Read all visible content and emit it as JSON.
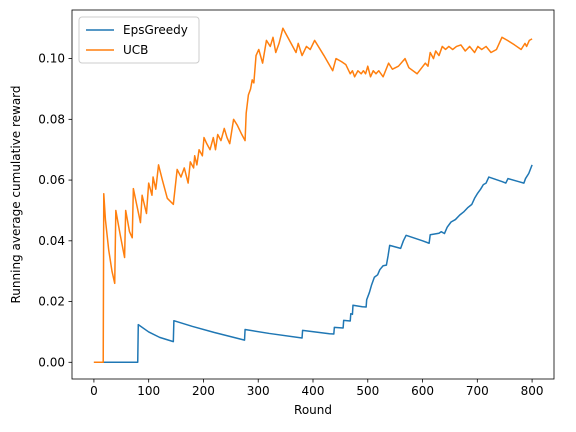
{
  "chart_data": {
    "type": "line",
    "title": "",
    "xlabel": "Round",
    "ylabel": "Running average cumulative reward",
    "xlim": [
      -40,
      840
    ],
    "ylim": [
      -0.0055,
      0.116
    ],
    "xticks": [
      0,
      100,
      200,
      300,
      400,
      500,
      600,
      700,
      800
    ],
    "yticks": [
      0.0,
      0.02,
      0.04,
      0.06,
      0.08,
      0.1
    ],
    "ytick_labels": [
      "0.00",
      "0.02",
      "0.04",
      "0.06",
      "0.08",
      "0.10"
    ],
    "grid": false,
    "legend": "top-left",
    "series": [
      {
        "name": "EpsGreedy",
        "color": "#1f77b4",
        "points": [
          [
            0,
            0
          ],
          [
            80,
            0
          ],
          [
            81,
            0.0124
          ],
          [
            100,
            0.01
          ],
          [
            120,
            0.0082
          ],
          [
            145,
            0.0068
          ],
          [
            146,
            0.0137
          ],
          [
            180,
            0.0118
          ],
          [
            220,
            0.0098
          ],
          [
            275,
            0.0073
          ],
          [
            276,
            0.0108
          ],
          [
            320,
            0.0095
          ],
          [
            380,
            0.008
          ],
          [
            381,
            0.0105
          ],
          [
            430,
            0.0094
          ],
          [
            438,
            0.0093
          ],
          [
            439,
            0.0115
          ],
          [
            455,
            0.0113
          ],
          [
            456,
            0.0138
          ],
          [
            468,
            0.0136
          ],
          [
            469,
            0.016
          ],
          [
            472,
            0.0158
          ],
          [
            473,
            0.0188
          ],
          [
            490,
            0.0183
          ],
          [
            497,
            0.0182
          ],
          [
            498,
            0.0206
          ],
          [
            503,
            0.023
          ],
          [
            507,
            0.0255
          ],
          [
            512,
            0.028
          ],
          [
            518,
            0.0288
          ],
          [
            522,
            0.0305
          ],
          [
            528,
            0.0318
          ],
          [
            534,
            0.032
          ],
          [
            537,
            0.035
          ],
          [
            540,
            0.0385
          ],
          [
            560,
            0.0375
          ],
          [
            565,
            0.04
          ],
          [
            570,
            0.0418
          ],
          [
            600,
            0.04
          ],
          [
            612,
            0.0392
          ],
          [
            614,
            0.042
          ],
          [
            630,
            0.0425
          ],
          [
            634,
            0.043
          ],
          [
            640,
            0.0424
          ],
          [
            645,
            0.0445
          ],
          [
            652,
            0.0462
          ],
          [
            660,
            0.047
          ],
          [
            668,
            0.0485
          ],
          [
            675,
            0.0495
          ],
          [
            683,
            0.051
          ],
          [
            690,
            0.052
          ],
          [
            695,
            0.054
          ],
          [
            700,
            0.0555
          ],
          [
            706,
            0.057
          ],
          [
            711,
            0.0585
          ],
          [
            716,
            0.059
          ],
          [
            721,
            0.061
          ],
          [
            745,
            0.0595
          ],
          [
            752,
            0.059
          ],
          [
            756,
            0.0605
          ],
          [
            775,
            0.0595
          ],
          [
            785,
            0.059
          ],
          [
            788,
            0.0605
          ],
          [
            794,
            0.0622
          ],
          [
            800,
            0.065
          ]
        ]
      },
      {
        "name": "UCB",
        "color": "#ff7f0e",
        "points": [
          [
            0,
            0
          ],
          [
            17,
            0
          ],
          [
            18,
            0.0555
          ],
          [
            21,
            0.047
          ],
          [
            27,
            0.037
          ],
          [
            33,
            0.03
          ],
          [
            38,
            0.026
          ],
          [
            40,
            0.05
          ],
          [
            48,
            0.042
          ],
          [
            56,
            0.0345
          ],
          [
            58,
            0.05
          ],
          [
            65,
            0.043
          ],
          [
            70,
            0.041
          ],
          [
            72,
            0.0572
          ],
          [
            78,
            0.052
          ],
          [
            85,
            0.046
          ],
          [
            88,
            0.055
          ],
          [
            96,
            0.049
          ],
          [
            100,
            0.059
          ],
          [
            106,
            0.055
          ],
          [
            108,
            0.061
          ],
          [
            113,
            0.057
          ],
          [
            118,
            0.065
          ],
          [
            125,
            0.06
          ],
          [
            134,
            0.054
          ],
          [
            145,
            0.052
          ],
          [
            152,
            0.0635
          ],
          [
            159,
            0.061
          ],
          [
            165,
            0.064
          ],
          [
            172,
            0.059
          ],
          [
            176,
            0.066
          ],
          [
            182,
            0.064
          ],
          [
            184,
            0.068
          ],
          [
            188,
            0.065
          ],
          [
            192,
            0.07
          ],
          [
            198,
            0.068
          ],
          [
            201,
            0.074
          ],
          [
            206,
            0.072
          ],
          [
            212,
            0.07
          ],
          [
            218,
            0.074
          ],
          [
            222,
            0.07
          ],
          [
            226,
            0.075
          ],
          [
            232,
            0.073
          ],
          [
            238,
            0.077
          ],
          [
            243,
            0.074
          ],
          [
            248,
            0.072
          ],
          [
            255,
            0.08
          ],
          [
            262,
            0.078
          ],
          [
            270,
            0.075
          ],
          [
            276,
            0.073
          ],
          [
            278,
            0.082
          ],
          [
            282,
            0.088
          ],
          [
            286,
            0.09
          ],
          [
            289,
            0.093
          ],
          [
            292,
            0.092
          ],
          [
            296,
            0.101
          ],
          [
            301,
            0.103
          ],
          [
            308,
            0.0985
          ],
          [
            315,
            0.106
          ],
          [
            322,
            0.104
          ],
          [
            327,
            0.107
          ],
          [
            332,
            0.102
          ],
          [
            338,
            0.105
          ],
          [
            345,
            0.11
          ],
          [
            357,
            0.106
          ],
          [
            369,
            0.102
          ],
          [
            373,
            0.105
          ],
          [
            380,
            0.101
          ],
          [
            388,
            0.104
          ],
          [
            395,
            0.103
          ],
          [
            403,
            0.106
          ],
          [
            420,
            0.101
          ],
          [
            436,
            0.096
          ],
          [
            442,
            0.1
          ],
          [
            452,
            0.099
          ],
          [
            460,
            0.098
          ],
          [
            468,
            0.095
          ],
          [
            472,
            0.096
          ],
          [
            476,
            0.094
          ],
          [
            482,
            0.096
          ],
          [
            488,
            0.095
          ],
          [
            492,
            0.096
          ],
          [
            496,
            0.095
          ],
          [
            500,
            0.0975
          ],
          [
            505,
            0.094
          ],
          [
            510,
            0.096
          ],
          [
            515,
            0.095
          ],
          [
            520,
            0.096
          ],
          [
            528,
            0.094
          ],
          [
            538,
            0.0985
          ],
          [
            545,
            0.0965
          ],
          [
            556,
            0.0975
          ],
          [
            568,
            0.1
          ],
          [
            575,
            0.097
          ],
          [
            590,
            0.095
          ],
          [
            605,
            0.0985
          ],
          [
            610,
            0.0975
          ],
          [
            614,
            0.102
          ],
          [
            620,
            0.1
          ],
          [
            624,
            0.1025
          ],
          [
            630,
            0.101
          ],
          [
            636,
            0.104
          ],
          [
            642,
            0.103
          ],
          [
            648,
            0.104
          ],
          [
            655,
            0.103
          ],
          [
            662,
            0.104
          ],
          [
            670,
            0.1045
          ],
          [
            678,
            0.1025
          ],
          [
            686,
            0.104
          ],
          [
            695,
            0.102
          ],
          [
            701,
            0.104
          ],
          [
            708,
            0.103
          ],
          [
            716,
            0.104
          ],
          [
            725,
            0.102
          ],
          [
            735,
            0.103
          ],
          [
            745,
            0.107
          ],
          [
            755,
            0.106
          ],
          [
            768,
            0.1045
          ],
          [
            780,
            0.103
          ],
          [
            787,
            0.105
          ],
          [
            790,
            0.104
          ],
          [
            795,
            0.106
          ],
          [
            800,
            0.1065
          ]
        ]
      }
    ]
  }
}
